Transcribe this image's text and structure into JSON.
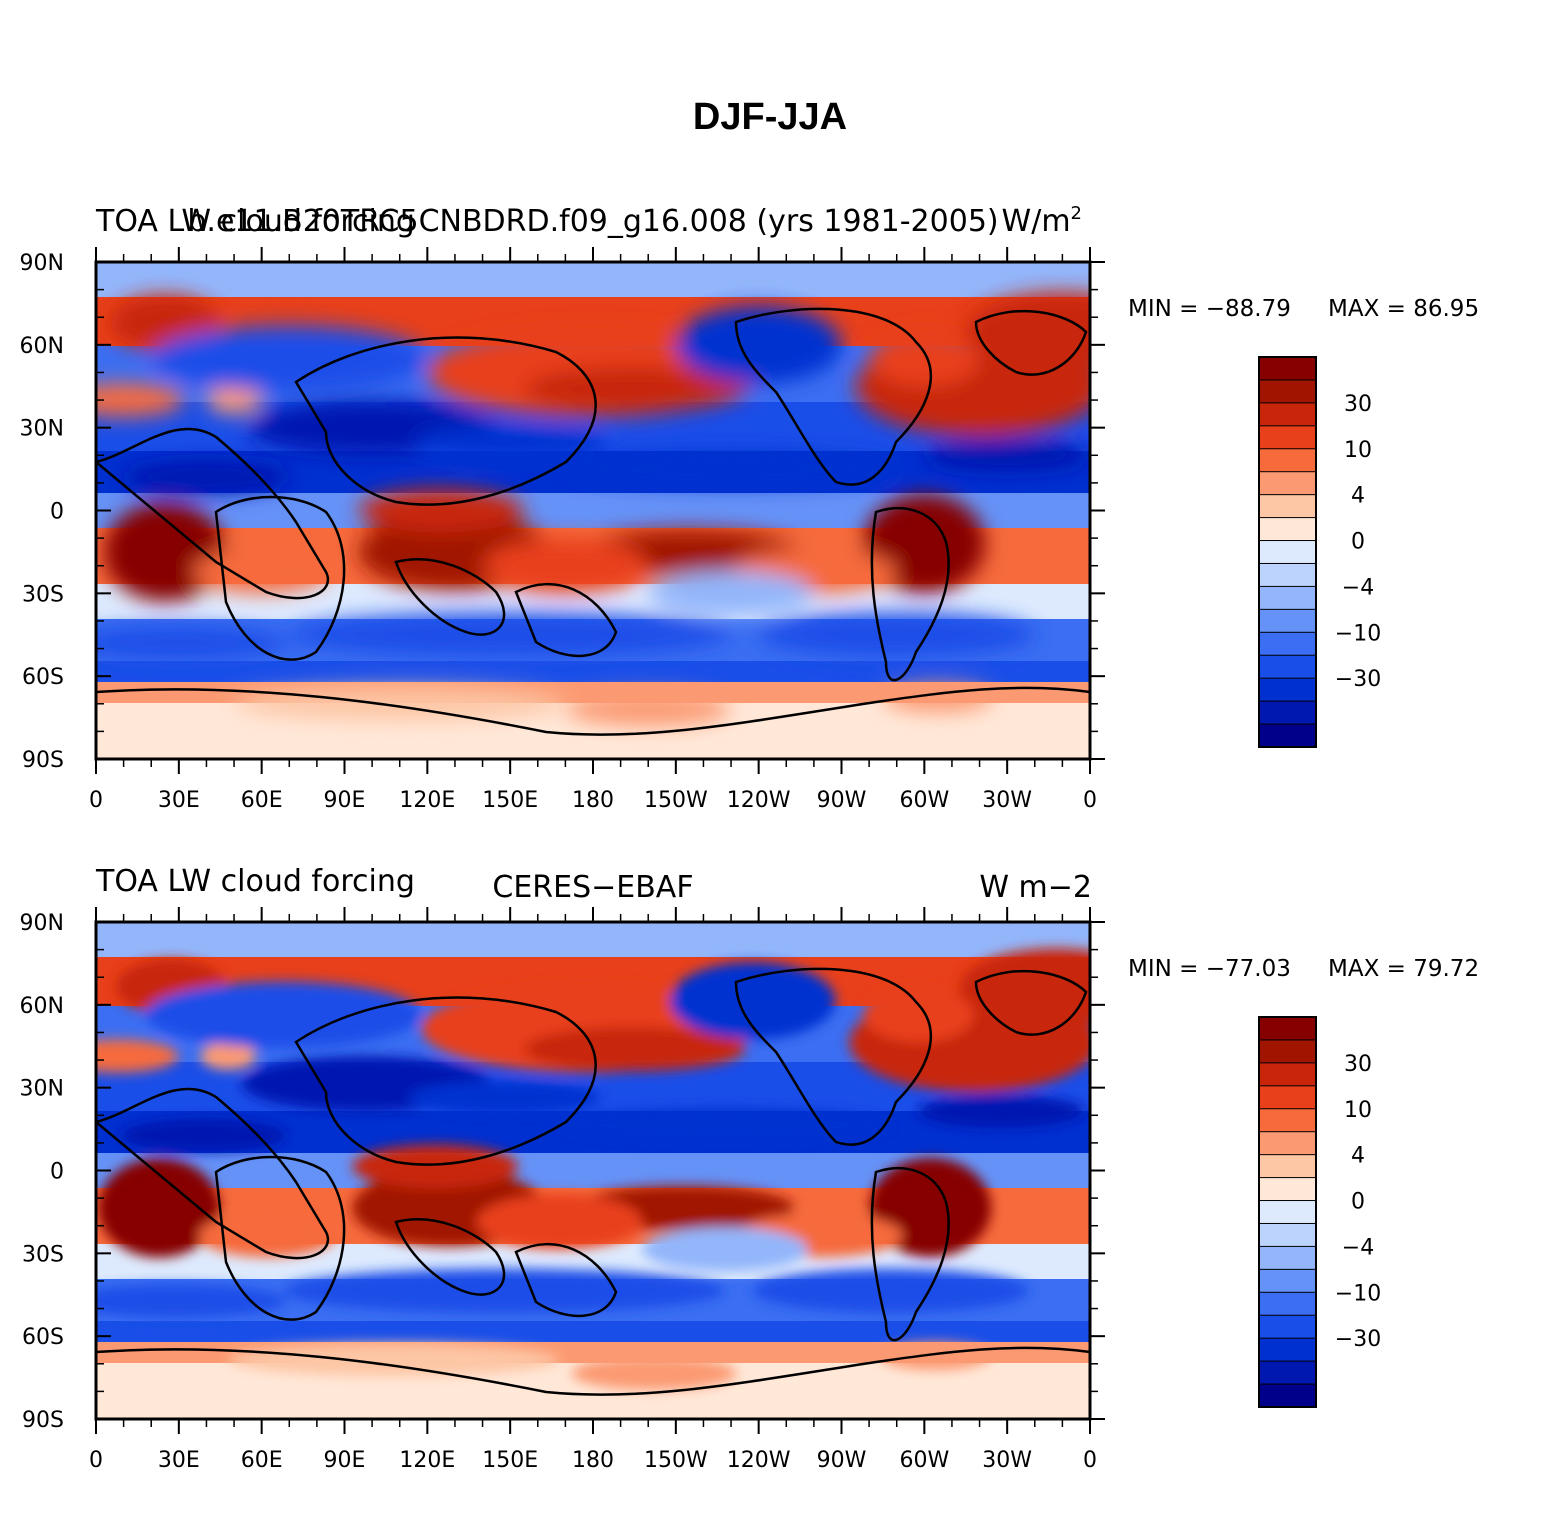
{
  "figure": {
    "title": "DJF-JJA"
  },
  "colors": {
    "levels": [
      "#00008b",
      "#0018b0",
      "#0030d0",
      "#1a4ee8",
      "#3b6ef2",
      "#6592f7",
      "#93b6fb",
      "#bcd4fd",
      "#ddeafe",
      "#ffe8d8",
      "#fdc6a5",
      "#fb9a72",
      "#f66a3c",
      "#e8401a",
      "#c8250a",
      "#a01400",
      "#860000"
    ]
  },
  "panels": [
    {
      "left_title": "TOA LW cloud forcing",
      "center_title": "b.e11.B20TRC5CNBDRD.f09_g16.008 (yrs 1981-2005)",
      "units": "W/m",
      "units_sup": "2",
      "min_label": "MIN = −88.79",
      "max_label": "MAX =  86.95",
      "data_min": -88.79,
      "data_max": 86.95
    },
    {
      "left_title": "TOA LW cloud forcing",
      "center_title": "CERES−EBAF",
      "units": "W m−2",
      "units_sup": "",
      "min_label": "MIN = −77.03",
      "max_label": "MAX =  79.72",
      "data_min": -77.03,
      "data_max": 79.72
    }
  ],
  "axes": {
    "lat_ticks": [
      "90N",
      "60N",
      "30N",
      "0",
      "30S",
      "60S",
      "90S"
    ],
    "lon_ticks": [
      "0",
      "30E",
      "60E",
      "90E",
      "120E",
      "150E",
      "180",
      "150W",
      "120W",
      "90W",
      "60W",
      "30W",
      "0"
    ]
  },
  "colorbar": {
    "labels": [
      "30",
      "10",
      "4",
      "0",
      "−4",
      "−10",
      "−30"
    ]
  },
  "chart_data": [
    {
      "type": "heatmap",
      "title": "DJF-JJA",
      "subtitle": "b.e11.B20TRC5CNBDRD.f09_g16.008 (yrs 1981-2005)",
      "variable": "TOA LW cloud forcing",
      "units": "W/m2",
      "xlim": [
        0,
        360
      ],
      "ylim": [
        -90,
        90
      ],
      "x_ticks": [
        "0",
        "30E",
        "60E",
        "90E",
        "120E",
        "150E",
        "180",
        "150W",
        "120W",
        "90W",
        "60W",
        "30W",
        "0"
      ],
      "y_ticks": [
        "90N",
        "60N",
        "30N",
        "0",
        "30S",
        "60S",
        "90S"
      ],
      "min": -88.79,
      "max": 86.95,
      "colorbar_labels": [
        "30",
        "10",
        "4",
        "0",
        "-4",
        "-10",
        "-30"
      ],
      "colorbar_position": "right"
    },
    {
      "type": "heatmap",
      "title": "DJF-JJA",
      "subtitle": "CERES-EBAF",
      "variable": "TOA LW cloud forcing",
      "units": "W m-2",
      "xlim": [
        0,
        360
      ],
      "ylim": [
        -90,
        90
      ],
      "x_ticks": [
        "0",
        "30E",
        "60E",
        "90E",
        "120E",
        "150E",
        "180",
        "150W",
        "120W",
        "90W",
        "60W",
        "30W",
        "0"
      ],
      "y_ticks": [
        "90N",
        "60N",
        "30N",
        "0",
        "30S",
        "60S",
        "90S"
      ],
      "min": -77.03,
      "max": 79.72,
      "colorbar_labels": [
        "30",
        "10",
        "4",
        "0",
        "-4",
        "-10",
        "-30"
      ],
      "colorbar_position": "right"
    }
  ]
}
